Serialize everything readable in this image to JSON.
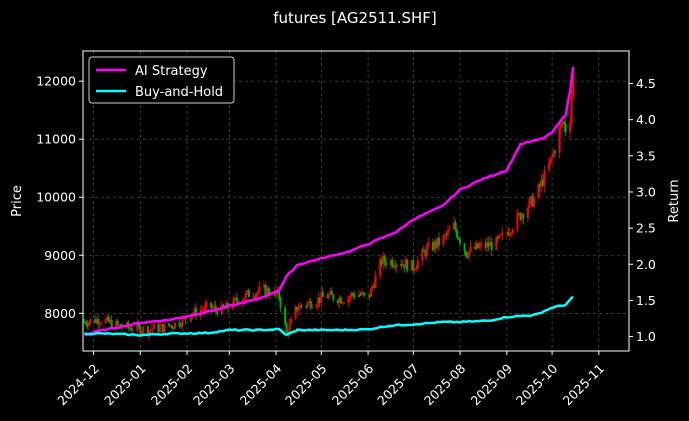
{
  "chart_data": {
    "type": "line",
    "title": "futures [AG2511.SHF]",
    "ylabel_left": "Price",
    "ylabel_right": "Return",
    "x_type": "date",
    "x_range": [
      "2024-11-24",
      "2025-11-21"
    ],
    "x_ticks": [
      "2024-12",
      "2025-01",
      "2025-02",
      "2025-03",
      "2025-04",
      "2025-05",
      "2025-06",
      "2025-07",
      "2025-08",
      "2025-09",
      "2025-10",
      "2025-11"
    ],
    "ylim_left": [
      7350,
      12520
    ],
    "yticks_left": [
      "8000",
      "9000",
      "10000",
      "11000",
      "12000"
    ],
    "ylim_right": [
      0.8,
      4.95
    ],
    "yticks_right": [
      "1.0",
      "1.5",
      "2.0",
      "2.5",
      "3.0",
      "3.5",
      "4.0",
      "4.5"
    ],
    "grid": true,
    "legend_position": "top-left",
    "colors": {
      "up": "#ff0000",
      "down": "#00b000",
      "ai": "#ff00ff",
      "bh": "#00ffff",
      "grid": "#5a5a5a"
    },
    "price_series": {
      "name": "",
      "kind": "candlestick",
      "x": [
        "2024-11-25",
        "2024-12-05",
        "2024-12-15",
        "2024-12-25",
        "2025-01-05",
        "2025-01-15",
        "2025-01-25",
        "2025-02-05",
        "2025-02-15",
        "2025-02-25",
        "2025-03-05",
        "2025-03-15",
        "2025-03-25",
        "2025-04-03",
        "2025-04-08",
        "2025-04-15",
        "2025-04-25",
        "2025-05-05",
        "2025-05-15",
        "2025-05-25",
        "2025-06-01",
        "2025-06-10",
        "2025-06-20",
        "2025-07-01",
        "2025-07-10",
        "2025-07-20",
        "2025-07-28",
        "2025-08-05",
        "2025-08-15",
        "2025-08-25",
        "2025-09-01",
        "2025-09-10",
        "2025-09-20",
        "2025-09-30",
        "2025-10-08",
        "2025-10-12",
        "2025-10-15"
      ],
      "close": [
        7850,
        7900,
        7800,
        7750,
        7720,
        7750,
        7820,
        8000,
        8100,
        8050,
        8200,
        8350,
        8400,
        8300,
        7650,
        8100,
        8200,
        8300,
        8250,
        8350,
        8250,
        8900,
        8900,
        8800,
        9100,
        9250,
        9500,
        9050,
        9150,
        9200,
        9400,
        9700,
        10000,
        10600,
        11300,
        11050,
        12100
      ]
    },
    "series": [
      {
        "name": "AI Strategy",
        "x": [
          "2024-11-25",
          "2024-12-01",
          "2024-12-20",
          "2025-01-01",
          "2025-01-20",
          "2025-02-01",
          "2025-02-20",
          "2025-03-01",
          "2025-03-20",
          "2025-04-03",
          "2025-04-08",
          "2025-04-15",
          "2025-05-01",
          "2025-05-20",
          "2025-06-01",
          "2025-06-20",
          "2025-07-01",
          "2025-07-20",
          "2025-08-01",
          "2025-08-15",
          "2025-09-01",
          "2025-09-10",
          "2025-09-25",
          "2025-10-01",
          "2025-10-10",
          "2025-10-13",
          "2025-10-15"
        ],
        "values": [
          1.02,
          1.06,
          1.14,
          1.19,
          1.23,
          1.28,
          1.37,
          1.42,
          1.52,
          1.64,
          1.83,
          1.99,
          2.08,
          2.18,
          2.28,
          2.45,
          2.62,
          2.8,
          3.03,
          3.17,
          3.3,
          3.66,
          3.74,
          3.82,
          4.07,
          4.4,
          4.73
        ]
      },
      {
        "name": "Buy-and-Hold",
        "x": [
          "2024-11-25",
          "2024-12-10",
          "2025-01-01",
          "2025-01-20",
          "2025-02-15",
          "2025-03-01",
          "2025-03-20",
          "2025-04-03",
          "2025-04-08",
          "2025-04-15",
          "2025-05-15",
          "2025-06-01",
          "2025-06-15",
          "2025-07-01",
          "2025-07-20",
          "2025-08-01",
          "2025-08-20",
          "2025-09-01",
          "2025-09-20",
          "2025-10-01",
          "2025-10-10",
          "2025-10-15"
        ],
        "values": [
          1.04,
          1.04,
          1.02,
          1.04,
          1.05,
          1.09,
          1.09,
          1.1,
          1.02,
          1.09,
          1.09,
          1.1,
          1.15,
          1.17,
          1.2,
          1.2,
          1.22,
          1.27,
          1.3,
          1.4,
          1.44,
          1.55
        ]
      }
    ]
  }
}
